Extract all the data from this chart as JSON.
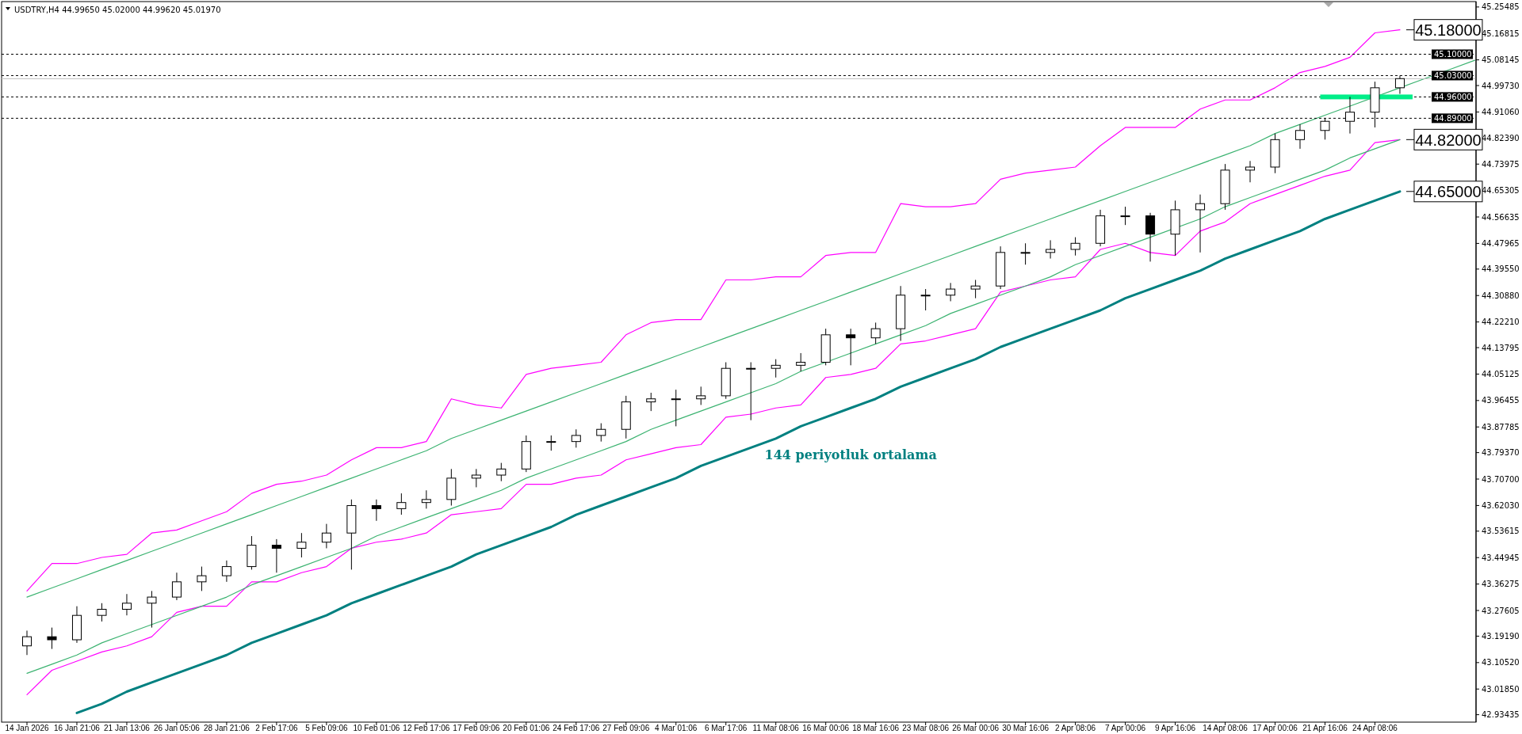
{
  "chart_data": {
    "type": "candlestick",
    "title": "USDTRY,H4  44.99650 45.02000 44.99620 45.01970",
    "categories": [
      "14 Jan 2026",
      null,
      "16 Jan 21:06",
      null,
      "21 Jan 13:06",
      null,
      "26 Jan 05:06",
      null,
      "28 Jan 21:06",
      null,
      "2 Feb 17:06",
      null,
      "5 Feb 09:06",
      null,
      "10 Feb 01:06",
      null,
      "12 Feb 17:06",
      null,
      "17 Feb 09:06",
      null,
      "20 Feb 01:06",
      null,
      "24 Feb 17:06",
      null,
      "27 Feb 09:06",
      null,
      "4 Mar 01:06",
      null,
      "6 Mar 17:06",
      null,
      "11 Mar 08:06",
      null,
      "16 Mar 00:06",
      null,
      "18 Mar 16:06",
      null,
      "23 Mar 08:06",
      null,
      "26 Mar 00:06",
      null,
      "30 Mar 16:06",
      null,
      "2 Apr 08:06",
      null,
      "7 Apr 00:06",
      null,
      "9 Apr 16:06",
      null,
      "14 Apr 08:06",
      null,
      "17 Apr 00:06",
      null,
      "21 Apr 16:06",
      null,
      "24 Apr 08:06",
      null,
      null,
      null,
      null
    ],
    "ohlc": [
      [
        43.16,
        43.21,
        43.13,
        43.19
      ],
      [
        43.19,
        43.22,
        43.15,
        43.18
      ],
      [
        43.18,
        43.29,
        43.17,
        43.26
      ],
      [
        43.26,
        43.3,
        43.24,
        43.28
      ],
      [
        43.28,
        43.33,
        43.26,
        43.3
      ],
      [
        43.3,
        43.34,
        43.22,
        43.32
      ],
      [
        43.32,
        43.4,
        43.31,
        43.37
      ],
      [
        43.37,
        43.42,
        43.34,
        43.39
      ],
      [
        43.39,
        43.44,
        43.37,
        43.42
      ],
      [
        43.42,
        43.52,
        43.41,
        43.49
      ],
      [
        43.49,
        43.51,
        43.4,
        43.48
      ],
      [
        43.48,
        43.53,
        43.45,
        43.5
      ],
      [
        43.5,
        43.56,
        43.48,
        43.53
      ],
      [
        43.53,
        43.64,
        43.41,
        43.62
      ],
      [
        43.62,
        43.64,
        43.57,
        43.61
      ],
      [
        43.61,
        43.66,
        43.59,
        43.63
      ],
      [
        43.63,
        43.67,
        43.61,
        43.64
      ],
      [
        43.64,
        43.74,
        43.62,
        43.71
      ],
      [
        43.71,
        43.74,
        43.68,
        43.72
      ],
      [
        43.72,
        43.76,
        43.7,
        43.74
      ],
      [
        43.74,
        43.85,
        43.73,
        43.83
      ],
      [
        43.83,
        43.85,
        43.8,
        43.83
      ],
      [
        43.83,
        43.87,
        43.81,
        43.85
      ],
      [
        43.85,
        43.89,
        43.83,
        43.87
      ],
      [
        43.87,
        43.98,
        43.84,
        43.96
      ],
      [
        43.96,
        43.99,
        43.93,
        43.97
      ],
      [
        43.97,
        44.0,
        43.88,
        43.97
      ],
      [
        43.97,
        44.01,
        43.95,
        43.98
      ],
      [
        43.98,
        44.09,
        43.97,
        44.07
      ],
      [
        44.07,
        44.09,
        43.9,
        44.07
      ],
      [
        44.07,
        44.1,
        44.04,
        44.08
      ],
      [
        44.08,
        44.12,
        44.06,
        44.09
      ],
      [
        44.09,
        44.2,
        44.08,
        44.18
      ],
      [
        44.18,
        44.2,
        44.08,
        44.17
      ],
      [
        44.17,
        44.22,
        44.15,
        44.2
      ],
      [
        44.2,
        44.34,
        44.16,
        44.31
      ],
      [
        44.31,
        44.33,
        44.26,
        44.31
      ],
      [
        44.31,
        44.35,
        44.29,
        44.33
      ],
      [
        44.33,
        44.36,
        44.3,
        44.34
      ],
      [
        44.34,
        44.47,
        44.33,
        44.45
      ],
      [
        44.45,
        44.48,
        44.41,
        44.45
      ],
      [
        44.45,
        44.49,
        44.43,
        44.46
      ],
      [
        44.46,
        44.5,
        44.44,
        44.48
      ],
      [
        44.48,
        44.59,
        44.47,
        44.57
      ],
      [
        44.57,
        44.6,
        44.54,
        44.57
      ],
      [
        44.57,
        44.58,
        44.42,
        44.51
      ],
      [
        44.51,
        44.62,
        44.44,
        44.59
      ],
      [
        44.59,
        44.64,
        44.45,
        44.61
      ],
      [
        44.61,
        44.74,
        44.59,
        44.72
      ],
      [
        44.72,
        44.75,
        44.68,
        44.73
      ],
      [
        44.73,
        44.84,
        44.71,
        44.82
      ],
      [
        44.82,
        44.87,
        44.79,
        44.85
      ],
      [
        44.85,
        44.89,
        44.82,
        44.88
      ],
      [
        44.88,
        44.96,
        44.84,
        44.91
      ],
      [
        44.91,
        45.01,
        44.86,
        44.99
      ],
      [
        44.99,
        45.03,
        44.97,
        45.02
      ],
      null,
      null,
      null
    ],
    "series": [
      {
        "type": "line",
        "color": "#ff00ff",
        "values": [
          43.34,
          43.43,
          43.43,
          43.45,
          43.46,
          43.53,
          43.54,
          43.57,
          43.6,
          43.66,
          43.69,
          43.7,
          43.72,
          43.77,
          43.81,
          43.81,
          43.83,
          43.97,
          43.95,
          43.94,
          44.05,
          44.07,
          44.08,
          44.09,
          44.18,
          44.22,
          44.23,
          44.23,
          44.36,
          44.36,
          44.37,
          44.37,
          44.44,
          44.45,
          44.45,
          44.61,
          44.6,
          44.6,
          44.61,
          44.69,
          44.71,
          44.72,
          44.73,
          44.8,
          44.86,
          44.86,
          44.86,
          44.92,
          44.95,
          44.95,
          44.99,
          45.04,
          45.06,
          45.09,
          45.17,
          45.18,
          null,
          null,
          null
        ]
      },
      {
        "type": "line",
        "color": "#ff00ff",
        "values": [
          43.0,
          43.08,
          43.11,
          43.14,
          43.16,
          43.19,
          43.27,
          43.29,
          43.29,
          43.37,
          43.37,
          43.4,
          43.42,
          43.48,
          43.5,
          43.51,
          43.53,
          43.59,
          43.6,
          43.61,
          43.69,
          43.69,
          43.71,
          43.72,
          43.77,
          43.79,
          43.81,
          43.82,
          43.91,
          43.92,
          43.94,
          43.95,
          44.04,
          44.05,
          44.07,
          44.15,
          44.16,
          44.18,
          44.2,
          44.32,
          44.34,
          44.36,
          44.37,
          44.46,
          44.48,
          44.45,
          44.44,
          44.52,
          44.55,
          44.61,
          44.64,
          44.67,
          44.7,
          44.72,
          44.81,
          44.82,
          null,
          null,
          null
        ]
      },
      {
        "type": "line",
        "name": "144 periyotluk ortalama",
        "color": "#008080",
        "values": [
          null,
          null,
          42.94,
          42.97,
          43.01,
          43.04,
          43.07,
          43.1,
          43.13,
          43.17,
          43.2,
          43.23,
          43.26,
          43.3,
          43.33,
          43.36,
          43.39,
          43.42,
          43.46,
          43.49,
          43.52,
          43.55,
          43.59,
          43.62,
          43.65,
          43.68,
          43.71,
          43.75,
          43.78,
          43.81,
          43.84,
          43.88,
          43.91,
          43.94,
          43.97,
          44.01,
          44.04,
          44.07,
          44.1,
          44.14,
          44.17,
          44.2,
          44.23,
          44.26,
          44.3,
          44.33,
          44.36,
          44.39,
          44.43,
          44.46,
          44.49,
          44.52,
          44.56,
          44.59,
          44.62,
          44.65,
          null,
          null,
          null
        ]
      },
      {
        "type": "line",
        "color": "#3cb371",
        "values": [
          43.32,
          43.35,
          43.38,
          43.41,
          43.44,
          43.47,
          43.5,
          43.53,
          43.56,
          43.59,
          43.62,
          43.65,
          43.68,
          43.71,
          43.74,
          43.77,
          43.8,
          43.84,
          43.87,
          43.9,
          43.93,
          43.96,
          43.99,
          44.02,
          44.05,
          44.08,
          44.11,
          44.14,
          44.17,
          44.2,
          44.23,
          44.26,
          44.29,
          44.32,
          44.35,
          44.38,
          44.41,
          44.44,
          44.47,
          44.5,
          44.53,
          44.56,
          44.59,
          44.62,
          44.65,
          44.68,
          44.71,
          44.74,
          44.77,
          44.8,
          44.84,
          44.87,
          44.9,
          44.93,
          null,
          44.99,
          45.02,
          45.05,
          45.08
        ]
      },
      {
        "type": "line",
        "color": "#3cb371",
        "values": [
          43.07,
          43.1,
          43.13,
          43.17,
          43.2,
          43.23,
          43.26,
          43.29,
          43.32,
          43.36,
          43.39,
          43.42,
          43.45,
          43.48,
          43.52,
          43.55,
          43.58,
          43.61,
          43.64,
          43.67,
          43.71,
          43.74,
          43.77,
          43.8,
          43.83,
          43.87,
          43.9,
          43.93,
          43.96,
          43.99,
          44.02,
          44.06,
          44.09,
          44.12,
          44.15,
          44.18,
          44.21,
          44.25,
          44.28,
          44.31,
          44.34,
          44.37,
          44.41,
          44.44,
          44.47,
          44.5,
          null,
          44.56,
          44.6,
          44.63,
          44.66,
          44.69,
          44.72,
          44.76,
          44.79,
          44.82,
          null,
          null,
          null
        ]
      }
    ],
    "ylim": [
      42.91,
      45.27
    ],
    "yticks": [
      45.25485,
      45.16815,
      45.08145,
      {
        "value": 44.9973,
        "label": "44.99730"
      },
      {
        "value": 44.9106,
        "label": "44.91060"
      },
      {
        "value": 44.8239,
        "label": "44.82390"
      },
      44.73975,
      44.65305,
      44.56635,
      44.47965,
      {
        "value": 44.3955,
        "label": "44.39550"
      },
      {
        "value": 44.3088,
        "label": "44.30880"
      },
      {
        "value": 44.2221,
        "label": "44.22210"
      },
      44.13795,
      44.05125,
      43.96455,
      43.87785,
      {
        "value": 43.7937,
        "label": "43.79370"
      },
      {
        "value": 43.707,
        "label": "43.70700"
      },
      {
        "value": 43.6203,
        "label": "43.62030"
      },
      43.53615,
      43.44945,
      43.36275,
      43.27605,
      {
        "value": 43.1919,
        "label": "43.19190"
      },
      {
        "value": 43.1052,
        "label": "43.10520"
      },
      {
        "value": 43.0185,
        "label": "43.01850"
      },
      42.93435
    ],
    "ref_lines": [
      {
        "axis": "y",
        "value": 45.1,
        "label": "45.10000",
        "line_style": "dashed",
        "color": "#000000"
      },
      {
        "axis": "y",
        "value": 45.03,
        "label": "45.03000",
        "line_style": "dashed",
        "color": "#000000"
      },
      {
        "axis": "y",
        "value": 44.96,
        "label": "44.96000",
        "line_style": "dashed",
        "color": "#000000"
      },
      {
        "axis": "y",
        "value": 44.89,
        "label": "44.89000",
        "line_style": "dashed",
        "color": "#000000"
      },
      {
        "axis": "y",
        "value": 45.0197,
        "line_style": "solid",
        "color": "#c0c0c0"
      }
    ],
    "annotations": [
      "45.18000",
      "44.82000",
      "44.65000"
    ]
  }
}
